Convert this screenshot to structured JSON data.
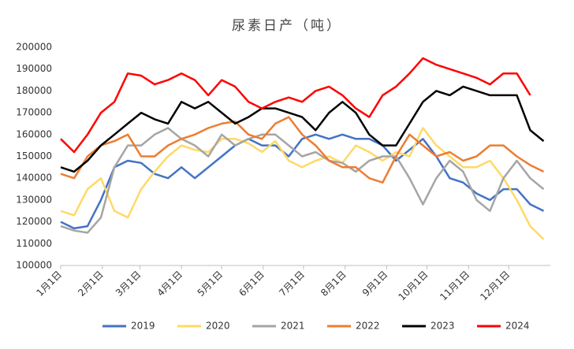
{
  "chart_data": {
    "type": "line",
    "title": "尿素日产（吨）",
    "x": [
      0,
      10,
      20,
      30,
      40,
      50,
      60,
      70,
      80,
      90,
      100,
      110,
      120,
      130,
      140,
      150,
      160,
      170,
      180,
      190,
      200,
      210,
      220,
      230,
      240,
      250,
      260,
      270,
      280,
      290,
      300,
      310,
      320,
      330,
      340,
      350,
      360
    ],
    "xlim": [
      0,
      365
    ],
    "xticks": [
      {
        "value": 0,
        "label": "1月1日"
      },
      {
        "value": 31,
        "label": "2月1日"
      },
      {
        "value": 59,
        "label": "3月1日"
      },
      {
        "value": 90,
        "label": "4月1日"
      },
      {
        "value": 120,
        "label": "5月1日"
      },
      {
        "value": 151,
        "label": "6月1日"
      },
      {
        "value": 181,
        "label": "7月1日"
      },
      {
        "value": 212,
        "label": "8月1日"
      },
      {
        "value": 243,
        "label": "9月1日"
      },
      {
        "value": 273,
        "label": "10月1日"
      },
      {
        "value": 304,
        "label": "11月1日"
      },
      {
        "value": 334,
        "label": "12月1日"
      }
    ],
    "ylim": [
      100000,
      200000
    ],
    "yticks": [
      100000,
      110000,
      120000,
      130000,
      140000,
      150000,
      160000,
      170000,
      180000,
      190000,
      200000
    ],
    "legend": "bottom",
    "series": [
      {
        "name": "2019",
        "color": "#4472c4",
        "values": [
          120000,
          117000,
          118000,
          130000,
          145000,
          148000,
          147000,
          142000,
          140000,
          145000,
          140000,
          145000,
          150000,
          155000,
          158000,
          155000,
          155000,
          150000,
          158000,
          160000,
          158000,
          160000,
          158000,
          158000,
          155000,
          148000,
          153000,
          158000,
          150000,
          140000,
          138000,
          133000,
          130000,
          135000,
          135000,
          128000,
          125000
        ]
      },
      {
        "name": "2020",
        "color": "#ffd966",
        "values": [
          125000,
          123000,
          135000,
          140000,
          125000,
          122000,
          135000,
          143000,
          150000,
          155000,
          153000,
          152000,
          158000,
          158000,
          156000,
          152000,
          157000,
          148000,
          145000,
          148000,
          150000,
          147000,
          155000,
          152000,
          148000,
          152000,
          150000,
          163000,
          155000,
          150000,
          145000,
          145000,
          148000,
          140000,
          130000,
          118000,
          112000
        ]
      },
      {
        "name": "2021",
        "color": "#a5a5a5",
        "values": [
          118000,
          116000,
          115000,
          122000,
          145000,
          155000,
          155000,
          160000,
          163000,
          158000,
          155000,
          150000,
          160000,
          155000,
          158000,
          160000,
          160000,
          155000,
          150000,
          152000,
          148000,
          147000,
          143000,
          148000,
          150000,
          150000,
          140000,
          128000,
          140000,
          148000,
          143000,
          130000,
          125000,
          140000,
          148000,
          140000,
          135000
        ]
      },
      {
        "name": "2022",
        "color": "#ed7d31",
        "values": [
          142000,
          140000,
          150000,
          155000,
          157000,
          160000,
          150000,
          150000,
          155000,
          158000,
          160000,
          163000,
          165000,
          166000,
          160000,
          158000,
          165000,
          168000,
          160000,
          155000,
          148000,
          145000,
          145000,
          140000,
          138000,
          150000,
          160000,
          155000,
          150000,
          152000,
          148000,
          150000,
          155000,
          155000,
          150000,
          146000,
          143000
        ]
      },
      {
        "name": "2023",
        "color": "#000000",
        "values": [
          145000,
          143000,
          148000,
          155000,
          160000,
          165000,
          170000,
          167000,
          165000,
          175000,
          172000,
          175000,
          170000,
          165000,
          168000,
          172000,
          172000,
          170000,
          168000,
          162000,
          170000,
          175000,
          170000,
          160000,
          155000,
          155000,
          165000,
          175000,
          180000,
          178000,
          182000,
          180000,
          178000,
          178000,
          178000,
          162000,
          157000
        ]
      },
      {
        "name": "2024",
        "color": "#ff0000",
        "values": [
          158000,
          152000,
          160000,
          170000,
          175000,
          188000,
          187000,
          183000,
          185000,
          188000,
          185000,
          178000,
          185000,
          182000,
          175000,
          172000,
          175000,
          177000,
          175000,
          180000,
          182000,
          178000,
          172000,
          168000,
          178000,
          182000,
          188000,
          195000,
          192000,
          190000,
          188000,
          186000,
          183000,
          188000,
          188000,
          178000,
          null
        ]
      }
    ]
  }
}
